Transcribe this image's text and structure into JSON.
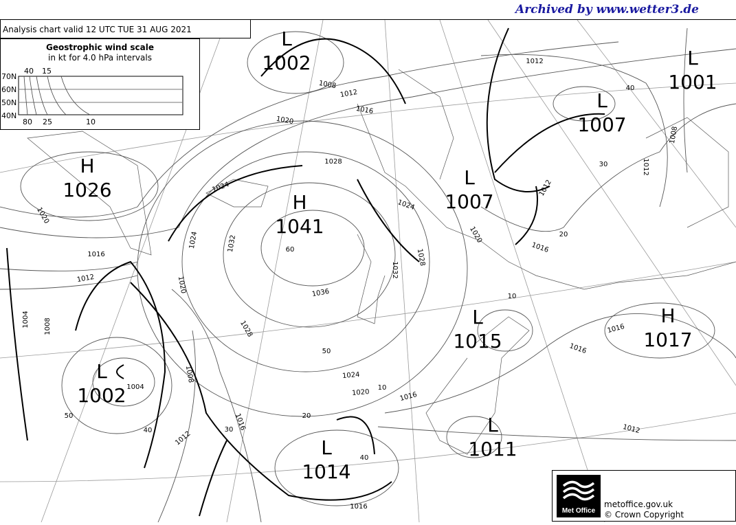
{
  "archive_credit": "Archived by www.wetter3.de",
  "chart_title": "Analysis chart  valid 12 UTC TUE 31  AUG 2021",
  "wind_scale": {
    "title": "Geostrophic wind scale",
    "subtitle": "in kt for 4.0 hPa intervals",
    "latitudes": [
      "70N",
      "60N",
      "50N",
      "40N"
    ],
    "top_labels": [
      "40",
      "15"
    ],
    "bottom_labels": [
      "80",
      "25",
      "10"
    ]
  },
  "pressure_centres": [
    {
      "type": "L",
      "value": "1002"
    },
    {
      "type": "L",
      "value": "1001"
    },
    {
      "type": "L",
      "value": "1007"
    },
    {
      "type": "H",
      "value": "1026"
    },
    {
      "type": "H",
      "value": "1041"
    },
    {
      "type": "L",
      "value": "1007"
    },
    {
      "type": "L",
      "value": "1015"
    },
    {
      "type": "H",
      "value": "1017"
    },
    {
      "type": "L",
      "value": "1002"
    },
    {
      "type": "L",
      "value": "1011"
    },
    {
      "type": "L",
      "value": "1014"
    }
  ],
  "isobar_labels": [
    "1012",
    "1008",
    "1012",
    "1016",
    "1020",
    "1028",
    "1024",
    "1020",
    "1024",
    "1020",
    "1016",
    "1016",
    "1012",
    "1032",
    "1024",
    "1020",
    "1036",
    "1032",
    "1028",
    "1028",
    "1024",
    "1020",
    "1016",
    "1016",
    "1016",
    "1012",
    "1012",
    "1016",
    "1004",
    "1008",
    "1004",
    "1008",
    "1016",
    "1008",
    "1012",
    "1012"
  ],
  "latitude_wind_labels": [
    "60",
    "50",
    "10",
    "20",
    "30",
    "40",
    "50",
    "40",
    "10",
    "20",
    "30",
    "40"
  ],
  "footer": {
    "logo_text": "Met Office",
    "url": "metoffice.gov.uk",
    "copyright": "© Crown Copyright"
  }
}
